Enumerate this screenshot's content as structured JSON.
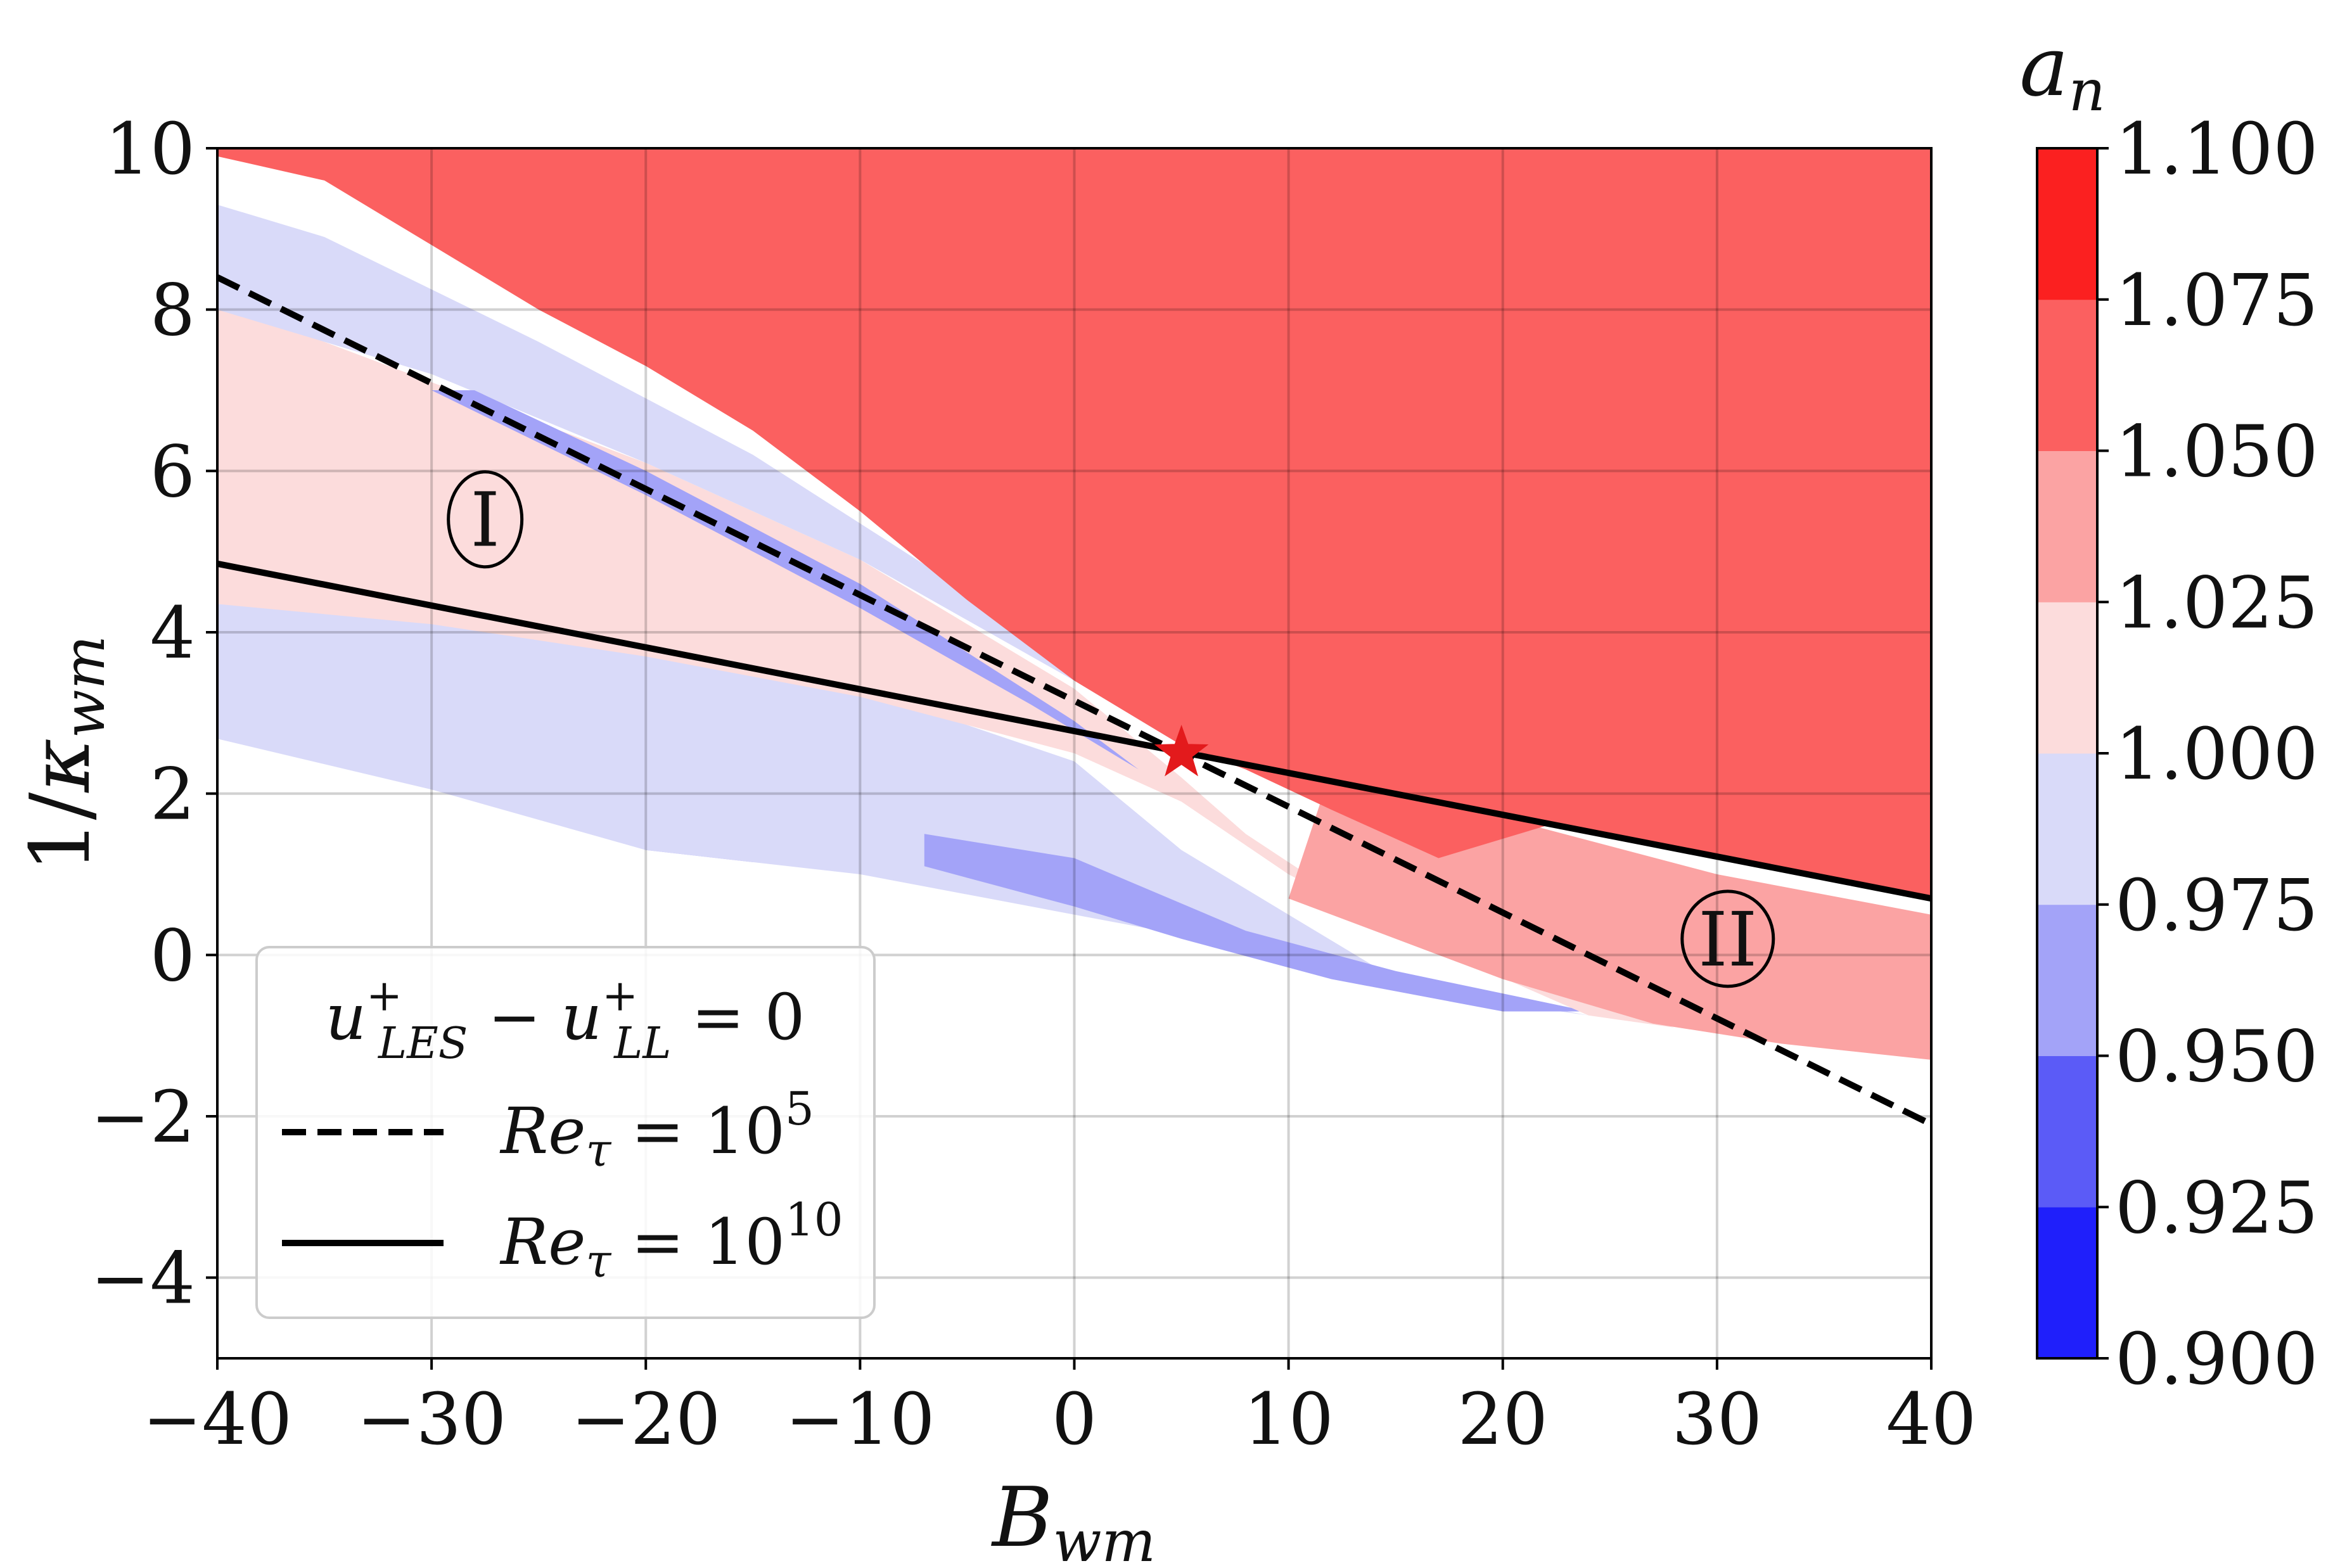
{
  "chart_data": {
    "type": "heatmap",
    "title": "",
    "xlabel": "B_wm",
    "ylabel": "1/κ_wm",
    "xlim": [
      -40,
      40
    ],
    "ylim": [
      -5,
      10
    ],
    "x_ticks": [
      -40,
      -30,
      -20,
      -10,
      0,
      10,
      20,
      30,
      40
    ],
    "x_tick_labels": [
      "−40",
      "−30",
      "−20",
      "−10",
      "0",
      "10",
      "20",
      "30",
      "40"
    ],
    "y_ticks": [
      -4,
      -2,
      0,
      2,
      4,
      6,
      8,
      10
    ],
    "y_tick_labels": [
      "−4",
      "−2",
      "0",
      "2",
      "4",
      "6",
      "8",
      "10"
    ],
    "grid": true,
    "colorbar": {
      "label": "a_n",
      "ticks": [
        0.9,
        0.925,
        0.95,
        0.975,
        1.0,
        1.025,
        1.05,
        1.075,
        1.1
      ],
      "tick_labels": [
        "0.900",
        "0.925",
        "0.950",
        "0.975",
        "1.000",
        "1.025",
        "1.050",
        "1.075",
        "1.100"
      ],
      "colors": [
        "#1f1ffb",
        "#5b5bf7",
        "#a3a3f8",
        "#d9daf9",
        "#fcdcdc",
        "#fba3a3",
        "#fb6060",
        "#fb2020"
      ]
    },
    "regions": [
      {
        "label": "I",
        "x": -27.5,
        "y": 5.4
      },
      {
        "label": "II",
        "x": 30.5,
        "y": 0.2
      }
    ],
    "marker": {
      "shape": "star",
      "x": 5,
      "y": 2.5,
      "color": "#e31a1c"
    },
    "legend": {
      "title": "u⁺_LES − u⁺_LL = 0",
      "placement": "lower-left",
      "entries": [
        {
          "label": "Re_τ = 10⁵",
          "style": "dashed"
        },
        {
          "label": "Re_τ = 10¹⁰",
          "style": "solid"
        }
      ]
    },
    "series": [
      {
        "name": "Re_τ = 10⁵",
        "style": "dashed",
        "x": [
          -40,
          40
        ],
        "y": [
          8.4,
          -2.1
        ]
      },
      {
        "name": "Re_τ = 10¹⁰",
        "style": "solid",
        "x": [
          -40,
          40
        ],
        "y": [
          4.85,
          0.7
        ]
      }
    ],
    "bands": [
      {
        "value_range": [
          0.95,
          0.975
        ],
        "polygon": [
          [
            -40,
            4.1
          ],
          [
            -40,
            2.68
          ],
          [
            -35,
            2.6
          ],
          [
            -30,
            2.05
          ],
          [
            -25,
            1.8
          ],
          [
            -20,
            1.3
          ],
          [
            -15,
            1.15
          ],
          [
            -20,
            1.9
          ],
          [
            -25,
            2.6
          ],
          [
            -30,
            3.1
          ],
          [
            -35,
            3.7
          ],
          [
            -40,
            4.0
          ]
        ]
      },
      {
        "value_range": [
          0.975,
          1.0
        ],
        "polygon": [
          [
            -40,
            4.3
          ],
          [
            -40,
            2.68
          ],
          [
            -30,
            2.05
          ],
          [
            -20,
            1.3
          ],
          [
            -10,
            1.0
          ],
          [
            0,
            0.5
          ],
          [
            10,
            0.0
          ],
          [
            20,
            -0.6
          ],
          [
            24,
            -0.75
          ],
          [
            15,
            -0.3
          ],
          [
            10,
            0.5
          ],
          [
            5,
            1.3
          ],
          [
            0,
            2.4
          ],
          [
            -10,
            3.3
          ],
          [
            -20,
            3.9
          ],
          [
            -30,
            4.2
          ],
          [
            -40,
            4.35
          ]
        ]
      },
      {
        "value_range": [
          0.95,
          0.975
        ],
        "polygon": [
          [
            -7,
            1.5
          ],
          [
            0,
            1.2
          ],
          [
            8,
            0.3
          ],
          [
            15,
            -0.2
          ],
          [
            24,
            -0.7
          ],
          [
            20,
            -0.7
          ],
          [
            12,
            -0.3
          ],
          [
            5,
            0.2
          ],
          [
            0,
            0.6
          ],
          [
            -7,
            1.1
          ]
        ]
      },
      {
        "value_range": [
          1.0,
          1.025
        ],
        "polygon": [
          [
            -40,
            8.0
          ],
          [
            -40,
            4.35
          ],
          [
            -30,
            4.1
          ],
          [
            -20,
            3.7
          ],
          [
            -10,
            3.2
          ],
          [
            0,
            2.5
          ],
          [
            5,
            1.9
          ],
          [
            10,
            1.0
          ],
          [
            15,
            0.3
          ],
          [
            24,
            -0.75
          ],
          [
            28,
            -0.9
          ],
          [
            20,
            -0.2
          ],
          [
            12,
            0.8
          ],
          [
            8,
            1.5
          ],
          [
            5,
            2.2
          ],
          [
            0,
            3.3
          ],
          [
            -10,
            4.9
          ],
          [
            -20,
            6.1
          ],
          [
            -30,
            7.1
          ],
          [
            -40,
            8.1
          ]
        ]
      },
      {
        "value_range": [
          0.975,
          1.0
        ],
        "polygon": [
          [
            -40,
            9.3
          ],
          [
            -40,
            8.0
          ],
          [
            -30,
            7.2
          ],
          [
            -20,
            6.1
          ],
          [
            -10,
            4.9
          ],
          [
            0,
            3.4
          ],
          [
            5,
            2.6
          ],
          [
            7,
            2.4
          ],
          [
            3,
            3.0
          ],
          [
            -5,
            4.5
          ],
          [
            -15,
            6.2
          ],
          [
            -25,
            7.6
          ],
          [
            -35,
            8.9
          ]
        ]
      },
      {
        "value_range": [
          0.95,
          0.975
        ],
        "polygon": [
          [
            -30,
            7.0
          ],
          [
            -20,
            5.7
          ],
          [
            -10,
            4.3
          ],
          [
            -2,
            3.1
          ],
          [
            3,
            2.3
          ],
          [
            0,
            2.9
          ],
          [
            -10,
            4.6
          ],
          [
            -20,
            6.0
          ],
          [
            -28,
            7.0
          ]
        ]
      },
      {
        "value_range": [
          1.025,
          1.05
        ],
        "polygon": [
          [
            10,
            0.7
          ],
          [
            20,
            -0.3
          ],
          [
            27,
            -0.85
          ],
          [
            33,
            -1.1
          ],
          [
            40,
            -1.3
          ],
          [
            40,
            0.5
          ],
          [
            30,
            1.0
          ],
          [
            20,
            1.7
          ],
          [
            12,
            2.3
          ]
        ]
      },
      {
        "value_range": [
          1.05,
          1.075
        ],
        "polygon": [
          [
            -40,
            10
          ],
          [
            40,
            10
          ],
          [
            40,
            0.7
          ],
          [
            30,
            1.2
          ],
          [
            22,
            1.6
          ],
          [
            17,
            1.2
          ],
          [
            12,
            1.8
          ],
          [
            8,
            2.3
          ],
          [
            5,
            2.6
          ],
          [
            0,
            3.4
          ],
          [
            -5,
            4.4
          ],
          [
            -10,
            5.5
          ],
          [
            -15,
            6.5
          ],
          [
            -20,
            7.3
          ],
          [
            -25,
            8.0
          ],
          [
            -30,
            8.8
          ],
          [
            -35,
            9.6
          ],
          [
            -40,
            9.9
          ]
        ]
      }
    ]
  }
}
